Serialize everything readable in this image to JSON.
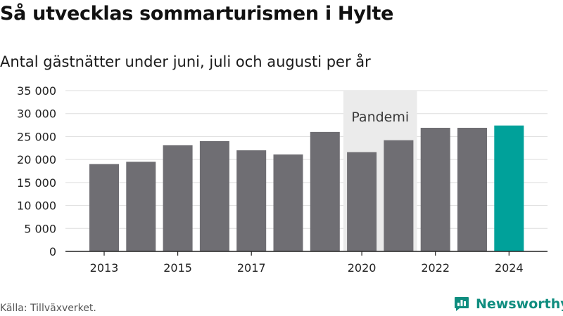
{
  "title": "Så utvecklas sommarturismen i Hylte",
  "subtitle": "Antal gästnätter under juni, juli och augusti per år",
  "source": "Källa: Tillväxverket.",
  "brand": {
    "name": "Newsworthy",
    "icon": "newsworthy-logo-icon",
    "color": "#0f8d7f"
  },
  "colors": {
    "bar": "#6f6e73",
    "highlight": "#00a19a",
    "band": "#ebebeb",
    "grid": "#dddddd"
  },
  "chart_data": {
    "type": "bar",
    "categories": [
      "2013",
      "2014",
      "2015",
      "2016",
      "2017",
      "2018",
      "2019",
      "2020",
      "2021",
      "2022",
      "2023",
      "2024"
    ],
    "values": [
      19000,
      19500,
      23100,
      24000,
      22000,
      21100,
      26000,
      21600,
      24200,
      26900,
      26900,
      27400
    ],
    "highlight_category": "2024",
    "xtick_labels": [
      "2013",
      "2015",
      "2017",
      "2020",
      "2022",
      "2024"
    ],
    "yticks": [
      0,
      5000,
      10000,
      15000,
      20000,
      25000,
      30000,
      35000
    ],
    "ytick_labels": [
      "0",
      "5 000",
      "10 000",
      "15 000",
      "20 000",
      "25 000",
      "30 000",
      "35 000"
    ],
    "ylim": [
      0,
      35000
    ],
    "grid": true,
    "annotation": {
      "label": "Pandemi",
      "from": "2020",
      "to": "2021"
    },
    "xlabel": "",
    "ylabel": ""
  }
}
